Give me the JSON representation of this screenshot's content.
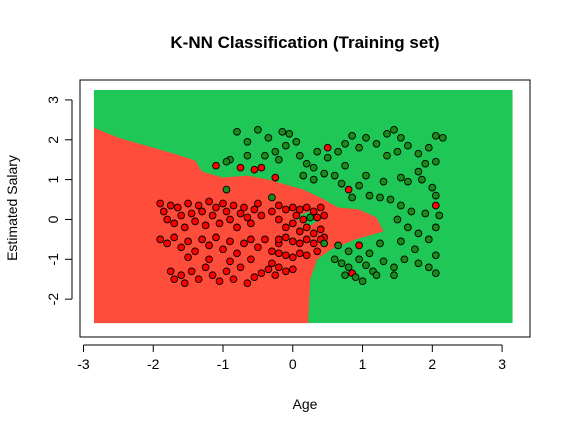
{
  "chart_data": {
    "type": "scatter",
    "title": "K-NN Classification (Training set)",
    "xlabel": "Age",
    "ylabel": "Estimated Salary",
    "xlim": [
      -3.05,
      3.4
    ],
    "ylim": [
      -2.95,
      3.5
    ],
    "x_ticks": [
      -3,
      -2,
      -1,
      0,
      1,
      2,
      3
    ],
    "y_ticks": [
      -2,
      -1,
      0,
      1,
      2,
      3
    ],
    "grid": false,
    "legend": "none",
    "region_extent": {
      "x": [
        -2.85,
        3.15
      ],
      "y": [
        -2.6,
        3.25
      ]
    },
    "colors": {
      "region_class_0": "#ff4d3b",
      "region_class_1": "#1ec756",
      "point_class_0": "#ff0000",
      "point_class_1": "#1a8a1a",
      "point_outline": "#000000"
    },
    "decision_regions": {
      "class_0_polygon": [
        [
          -2.85,
          2.3
        ],
        [
          -2.5,
          2.05
        ],
        [
          -2.1,
          1.85
        ],
        [
          -1.7,
          1.65
        ],
        [
          -1.4,
          1.48
        ],
        [
          -1.3,
          1.2
        ],
        [
          -1.0,
          1.05
        ],
        [
          -0.65,
          1.1
        ],
        [
          -0.35,
          1.0
        ],
        [
          0.15,
          0.75
        ],
        [
          0.45,
          0.5
        ],
        [
          0.65,
          0.3
        ],
        [
          0.95,
          0.25
        ],
        [
          1.2,
          0.05
        ],
        [
          1.3,
          -0.3
        ],
        [
          0.9,
          -0.5
        ],
        [
          0.55,
          -0.75
        ],
        [
          0.35,
          -1.0
        ],
        [
          0.25,
          -1.5
        ],
        [
          0.22,
          -2.6
        ],
        [
          -2.85,
          -2.6
        ]
      ],
      "class_1_islands": [
        [
          [
            -1.0,
            1.45
          ],
          [
            -0.85,
            1.55
          ],
          [
            -0.72,
            1.3
          ],
          [
            -0.85,
            1.2
          ]
        ],
        [
          [
            0.0,
            0.05
          ],
          [
            0.25,
            0.2
          ],
          [
            0.4,
            0.0
          ],
          [
            0.25,
            -0.15
          ]
        ]
      ]
    },
    "series": [
      {
        "name": "",
        "class": 0,
        "points": [
          [
            -1.9,
            0.4
          ],
          [
            -1.85,
            0.2
          ],
          [
            -1.8,
            0.0
          ],
          [
            -1.75,
            0.35
          ],
          [
            -1.7,
            -0.1
          ],
          [
            -1.65,
            0.3
          ],
          [
            -1.6,
            0.1
          ],
          [
            -1.55,
            -0.2
          ],
          [
            -1.5,
            0.4
          ],
          [
            -1.45,
            0.15
          ],
          [
            -1.4,
            -0.05
          ],
          [
            -1.35,
            0.35
          ],
          [
            -1.3,
            0.2
          ],
          [
            -1.25,
            -0.15
          ],
          [
            -1.2,
            0.45
          ],
          [
            -1.15,
            0.1
          ],
          [
            -1.1,
            0.3
          ],
          [
            -1.05,
            -0.1
          ],
          [
            -1.0,
            0.4
          ],
          [
            -0.95,
            0.2
          ],
          [
            -0.9,
            0.0
          ],
          [
            -0.85,
            0.35
          ],
          [
            -0.8,
            -0.2
          ],
          [
            -0.75,
            0.15
          ],
          [
            -0.7,
            0.3
          ],
          [
            -0.65,
            0.05
          ],
          [
            -0.6,
            -0.1
          ],
          [
            -0.55,
            0.25
          ],
          [
            -0.5,
            0.4
          ],
          [
            -0.45,
            0.1
          ],
          [
            -1.9,
            -0.5
          ],
          [
            -1.8,
            -0.6
          ],
          [
            -1.7,
            -0.45
          ],
          [
            -1.6,
            -0.7
          ],
          [
            -1.5,
            -0.55
          ],
          [
            -1.4,
            -0.8
          ],
          [
            -1.3,
            -0.5
          ],
          [
            -1.2,
            -0.65
          ],
          [
            -1.1,
            -0.45
          ],
          [
            -1.0,
            -0.75
          ],
          [
            -0.9,
            -0.55
          ],
          [
            -0.8,
            -0.85
          ],
          [
            -0.7,
            -0.6
          ],
          [
            -0.6,
            -0.5
          ],
          [
            -0.5,
            -0.7
          ],
          [
            -0.4,
            -0.5
          ],
          [
            -0.3,
            -0.8
          ],
          [
            -0.2,
            -0.6
          ],
          [
            -1.75,
            -1.3
          ],
          [
            -1.7,
            -1.5
          ],
          [
            -1.6,
            -1.4
          ],
          [
            -1.55,
            -1.6
          ],
          [
            -1.45,
            -1.3
          ],
          [
            -1.35,
            -1.5
          ],
          [
            -1.25,
            -1.2
          ],
          [
            -1.15,
            -1.4
          ],
          [
            -1.05,
            -1.55
          ],
          [
            -0.95,
            -1.3
          ],
          [
            -0.85,
            -1.5
          ],
          [
            -0.75,
            -1.2
          ],
          [
            -0.65,
            -1.6
          ],
          [
            -0.55,
            -1.45
          ],
          [
            -0.45,
            -1.35
          ],
          [
            -0.35,
            -1.25
          ],
          [
            -0.25,
            -1.4
          ],
          [
            -1.5,
            -0.95
          ],
          [
            -1.2,
            -1.0
          ],
          [
            -0.9,
            -1.05
          ],
          [
            -0.6,
            -1.0
          ],
          [
            -0.3,
            -1.1
          ],
          [
            -0.3,
            0.2
          ],
          [
            -0.2,
            0.35
          ],
          [
            -0.2,
            0.0
          ],
          [
            -0.1,
            0.25
          ],
          [
            -0.1,
            -0.2
          ],
          [
            0.0,
            0.3
          ],
          [
            0.0,
            -0.1
          ],
          [
            0.05,
            0.1
          ],
          [
            0.1,
            0.25
          ],
          [
            0.1,
            -0.3
          ],
          [
            0.15,
            0.0
          ],
          [
            0.2,
            0.3
          ],
          [
            0.2,
            -0.2
          ],
          [
            0.3,
            0.2
          ],
          [
            0.3,
            -0.35
          ],
          [
            0.35,
            0.05
          ],
          [
            0.4,
            0.3
          ],
          [
            0.4,
            -0.25
          ],
          [
            0.45,
            0.1
          ],
          [
            0.45,
            -0.45
          ],
          [
            -0.2,
            -0.5
          ],
          [
            -0.1,
            -0.45
          ],
          [
            0.0,
            -0.55
          ],
          [
            0.1,
            -0.6
          ],
          [
            0.2,
            -0.5
          ],
          [
            0.3,
            -0.6
          ],
          [
            0.4,
            -0.5
          ],
          [
            -0.2,
            -0.85
          ],
          [
            -0.1,
            -0.9
          ],
          [
            0.0,
            -0.95
          ],
          [
            0.1,
            -0.85
          ],
          [
            0.2,
            -0.9
          ],
          [
            0.35,
            -0.8
          ],
          [
            -0.2,
            -1.2
          ],
          [
            -0.1,
            -1.3
          ],
          [
            0.0,
            -1.25
          ],
          [
            -1.1,
            1.35
          ],
          [
            -0.75,
            1.3
          ],
          [
            -0.45,
            1.3
          ],
          [
            -0.25,
            1.05
          ],
          [
            0.5,
            1.8
          ],
          [
            0.8,
            0.75
          ],
          [
            0.95,
            -0.65
          ],
          [
            0.85,
            -1.35
          ],
          [
            2.05,
            0.35
          ],
          [
            -0.55,
            1.25
          ]
        ]
      },
      {
        "name": "",
        "class": 1,
        "points": [
          [
            -0.8,
            2.2
          ],
          [
            -0.65,
            1.95
          ],
          [
            -0.5,
            2.25
          ],
          [
            -0.35,
            2.05
          ],
          [
            -0.25,
            1.7
          ],
          [
            -0.15,
            2.2
          ],
          [
            -0.05,
            2.15
          ],
          [
            -0.1,
            1.85
          ],
          [
            0.05,
            1.95
          ],
          [
            -0.2,
            1.5
          ],
          [
            -0.4,
            1.6
          ],
          [
            -0.65,
            1.6
          ],
          [
            -0.9,
            1.5
          ],
          [
            0.1,
            1.6
          ],
          [
            0.2,
            1.4
          ],
          [
            0.35,
            1.7
          ],
          [
            0.3,
            1.3
          ],
          [
            0.5,
            1.55
          ],
          [
            0.65,
            1.7
          ],
          [
            0.75,
            1.9
          ],
          [
            0.15,
            1.1
          ],
          [
            0.3,
            1.0
          ],
          [
            0.45,
            1.15
          ],
          [
            0.6,
            1.1
          ],
          [
            0.7,
            0.9
          ],
          [
            0.75,
            1.35
          ],
          [
            0.85,
            2.1
          ],
          [
            0.95,
            1.8
          ],
          [
            1.05,
            2.05
          ],
          [
            1.2,
            1.9
          ],
          [
            1.35,
            2.15
          ],
          [
            1.45,
            2.25
          ],
          [
            1.55,
            2.05
          ],
          [
            1.35,
            1.6
          ],
          [
            1.5,
            1.7
          ],
          [
            1.65,
            1.85
          ],
          [
            1.8,
            1.65
          ],
          [
            1.95,
            1.8
          ],
          [
            2.05,
            2.1
          ],
          [
            2.15,
            2.05
          ],
          [
            1.9,
            1.4
          ],
          [
            2.05,
            1.45
          ],
          [
            1.8,
            1.2
          ],
          [
            1.55,
            1.05
          ],
          [
            1.65,
            0.95
          ],
          [
            1.85,
            1.0
          ],
          [
            2.0,
            0.8
          ],
          [
            2.05,
            0.6
          ],
          [
            1.3,
            0.95
          ],
          [
            1.05,
            1.1
          ],
          [
            0.95,
            0.85
          ],
          [
            0.85,
            0.55
          ],
          [
            1.1,
            0.6
          ],
          [
            1.25,
            0.55
          ],
          [
            1.4,
            0.5
          ],
          [
            1.55,
            0.35
          ],
          [
            1.7,
            0.2
          ],
          [
            1.9,
            0.15
          ],
          [
            2.1,
            0.1
          ],
          [
            2.05,
            -0.2
          ],
          [
            1.5,
            0.0
          ],
          [
            1.65,
            -0.2
          ],
          [
            1.8,
            -0.35
          ],
          [
            1.95,
            -0.5
          ],
          [
            1.55,
            -0.55
          ],
          [
            1.75,
            -0.75
          ],
          [
            2.05,
            -0.9
          ],
          [
            1.25,
            -0.6
          ],
          [
            1.1,
            -0.85
          ],
          [
            0.95,
            -1.0
          ],
          [
            0.8,
            -0.8
          ],
          [
            0.7,
            -1.1
          ],
          [
            0.8,
            -1.2
          ],
          [
            1.05,
            -1.15
          ],
          [
            1.15,
            -1.3
          ],
          [
            1.3,
            -1.05
          ],
          [
            1.45,
            -1.2
          ],
          [
            1.6,
            -1.0
          ],
          [
            1.8,
            -1.1
          ],
          [
            1.95,
            -1.2
          ],
          [
            2.05,
            -1.35
          ],
          [
            1.45,
            -1.4
          ],
          [
            1.2,
            -1.4
          ],
          [
            0.9,
            -1.45
          ],
          [
            0.75,
            -1.4
          ],
          [
            1.0,
            -1.55
          ],
          [
            0.65,
            -0.65
          ],
          [
            0.6,
            -1.0
          ],
          [
            0.45,
            -0.6
          ],
          [
            -0.95,
            0.75
          ],
          [
            0.25,
            0.05
          ],
          [
            -0.3,
            0.55
          ],
          [
            -0.95,
            1.45
          ]
        ]
      }
    ]
  }
}
